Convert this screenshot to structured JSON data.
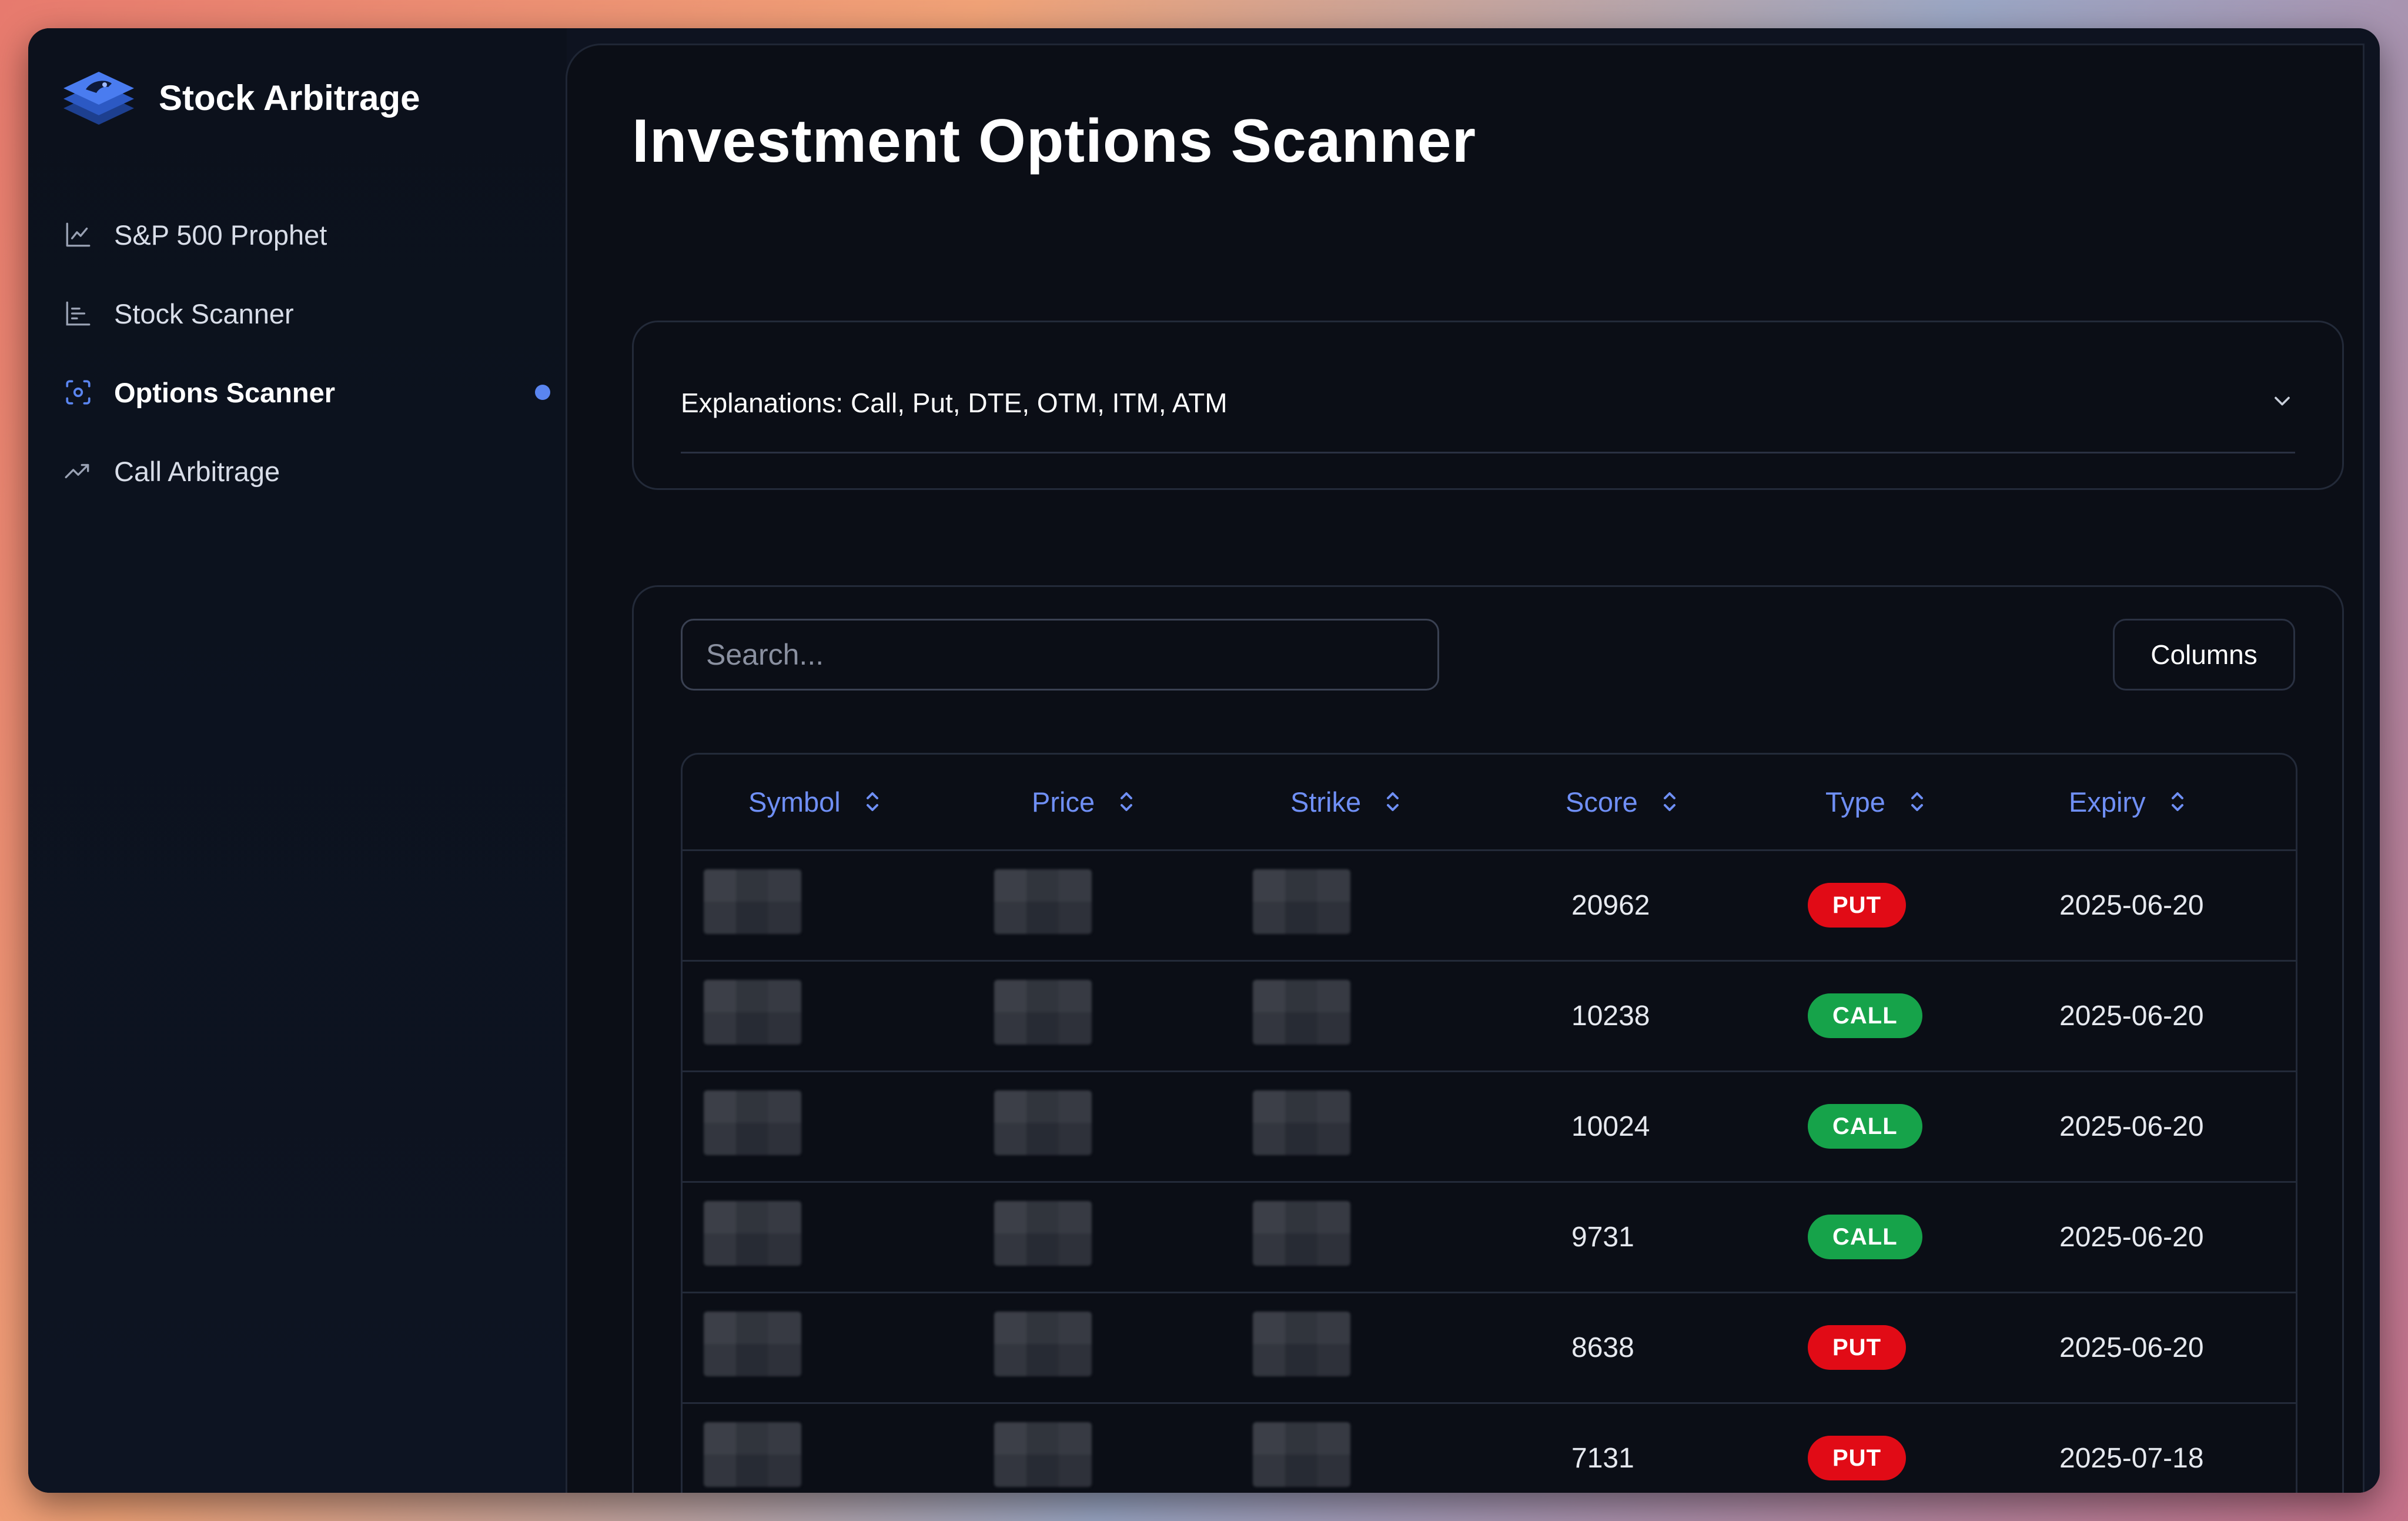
{
  "app": {
    "title": "Stock Arbitrage"
  },
  "sidebar": {
    "items": [
      {
        "label": "S&P 500 Prophet",
        "icon": "line-chart-icon",
        "active": false
      },
      {
        "label": "Stock Scanner",
        "icon": "bar-chart-icon",
        "active": false
      },
      {
        "label": "Options Scanner",
        "icon": "scan-icon",
        "active": true
      },
      {
        "label": "Call Arbitrage",
        "icon": "trending-up-icon",
        "active": false
      }
    ]
  },
  "main": {
    "title": "Investment Options Scanner",
    "accordion": {
      "label": "Explanations: Call, Put, DTE, OTM, ITM, ATM"
    },
    "search": {
      "placeholder": "Search..."
    },
    "columns_button": "Columns",
    "table": {
      "headers": [
        "Symbol",
        "Price",
        "Strike",
        "Score",
        "Type",
        "Expiry"
      ],
      "rows": [
        {
          "score": "20962",
          "type": "PUT",
          "expiry": "2025-06-20"
        },
        {
          "score": "10238",
          "type": "CALL",
          "expiry": "2025-06-20"
        },
        {
          "score": "10024",
          "type": "CALL",
          "expiry": "2025-06-20"
        },
        {
          "score": "9731",
          "type": "CALL",
          "expiry": "2025-06-20"
        },
        {
          "score": "8638",
          "type": "PUT",
          "expiry": "2025-06-20"
        },
        {
          "score": "7131",
          "type": "PUT",
          "expiry": "2025-07-18"
        }
      ]
    }
  },
  "colors": {
    "accent": "#6f8ff5",
    "put": "#e10b16",
    "call": "#16a34a",
    "background": "#0b0e16"
  }
}
